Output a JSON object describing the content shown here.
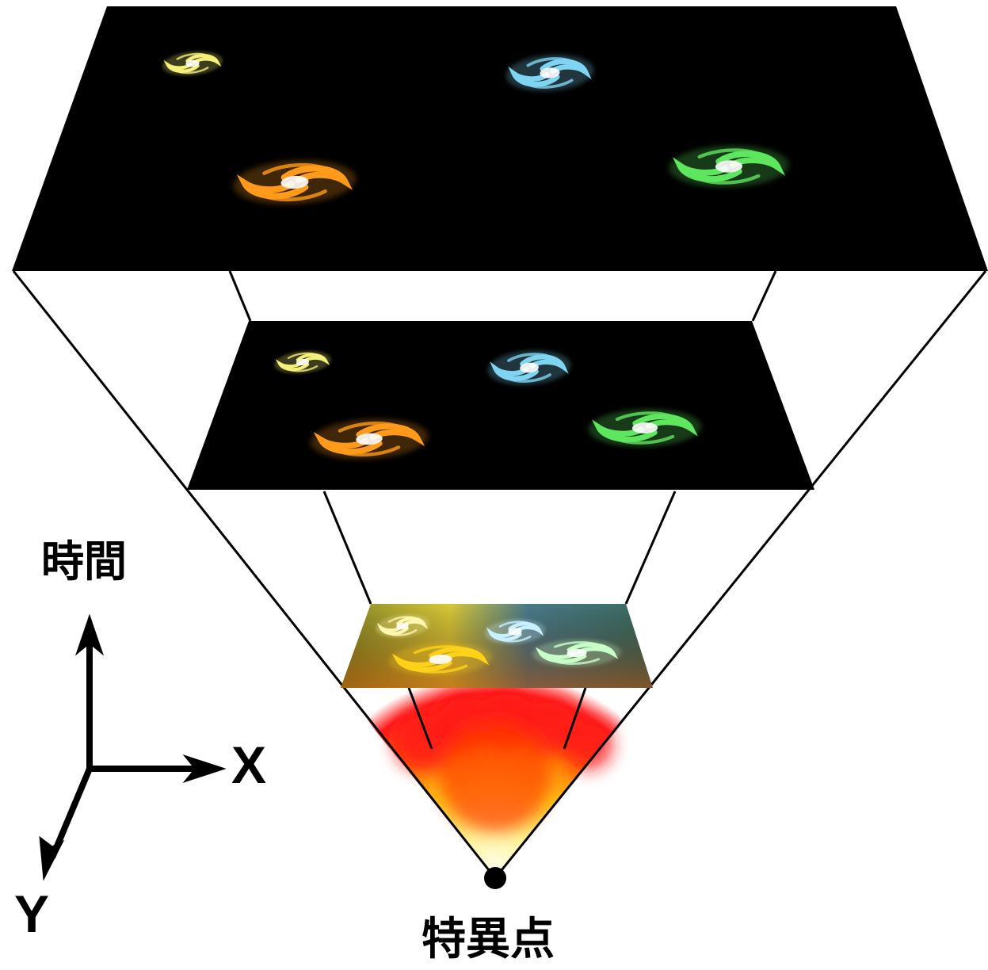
{
  "labels": {
    "time": "時間",
    "x_axis": "X",
    "y_axis": "Y",
    "singularity": "特異点"
  },
  "colors": {
    "background": "#ffffff",
    "space_slice": "#000000",
    "frame_lines": "#000000",
    "galaxy_yellow": "#f4f07a",
    "galaxy_blue": "#7fd4f2",
    "galaxy_orange": "#ff9a1a",
    "galaxy_green": "#5ee65e",
    "big_bang_red": "#ff1a1a",
    "big_bang_yellow": "#fff08a"
  },
  "galaxies": [
    "yellow-galaxy",
    "blue-galaxy",
    "orange-galaxy",
    "green-galaxy"
  ]
}
